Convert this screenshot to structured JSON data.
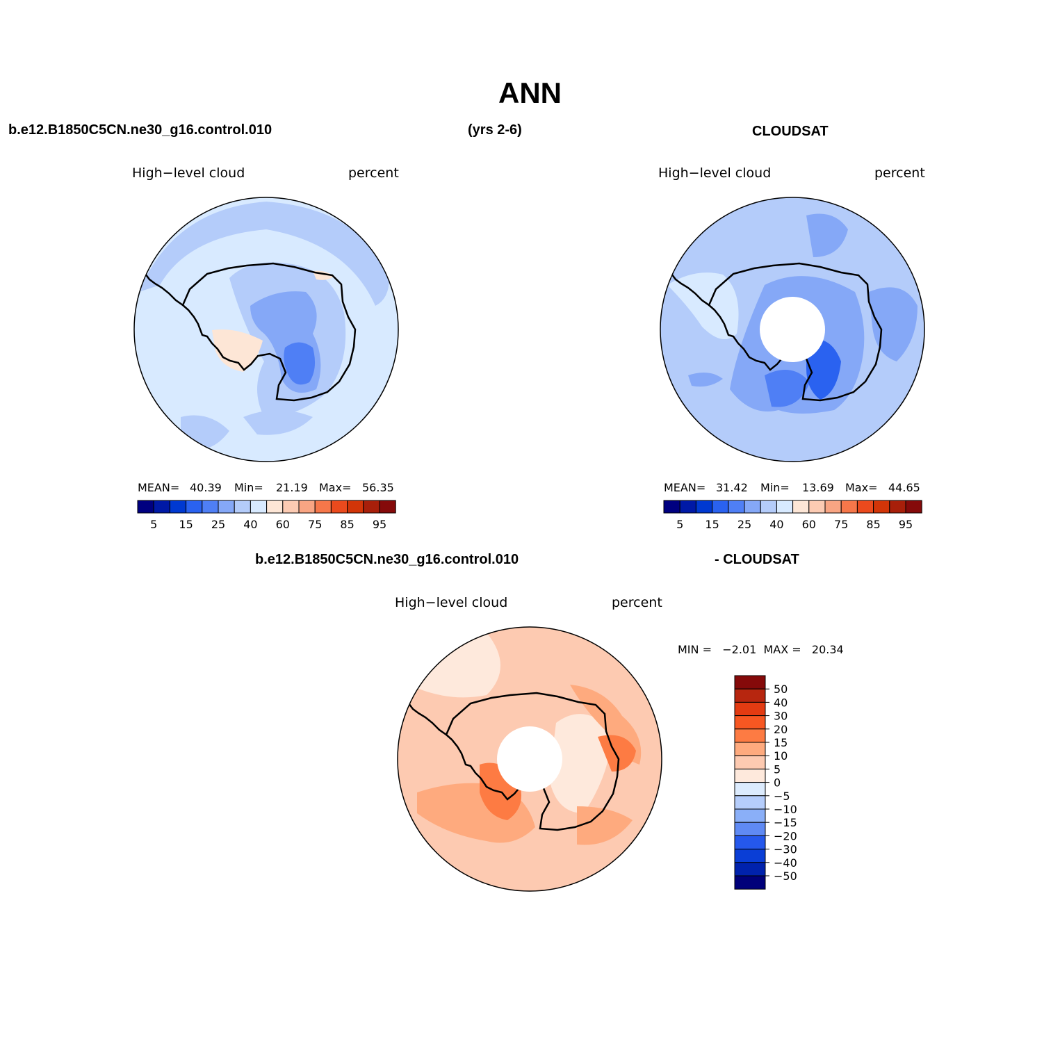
{
  "title": "ANN",
  "header": {
    "case_name": "b.e12.B1850C5CN.ne30_g16.control.010",
    "years": "(yrs 2-6)",
    "obs_name": "CLOUDSAT"
  },
  "panels": [
    {
      "id": "model",
      "variable_label": "High−level cloud",
      "units_label": "percent",
      "stats": {
        "mean_label": "MEAN=",
        "mean": "40.39",
        "min_label": "Min=",
        "min": "21.19",
        "max_label": "Max=",
        "max": "56.35"
      },
      "has_polar_hole": false
    },
    {
      "id": "obs",
      "variable_label": "High−level cloud",
      "units_label": "percent",
      "stats": {
        "mean_label": "MEAN=",
        "mean": "31.42",
        "min_label": "Min=",
        "min": "13.69",
        "max_label": "Max=",
        "max": "44.65"
      },
      "has_polar_hole": true
    }
  ],
  "difference": {
    "title_left": "b.e12.B1850C5CN.ne30_g16.control.010",
    "title_right": "- CLOUDSAT",
    "variable_label": "High−level cloud",
    "units_label": "percent",
    "min_max_text": "MIN =   −2.01  MAX =   20.34"
  },
  "colorbar_horizontal": {
    "colors": [
      "#000080",
      "#0019a6",
      "#0039d1",
      "#2a62f0",
      "#4f7ff5",
      "#85a8f7",
      "#b4ccfa",
      "#d8eaff",
      "#fde6d6",
      "#fccbb3",
      "#f9a583",
      "#f6774a",
      "#eb4a1d",
      "#d23508",
      "#a81f0a",
      "#850a0a"
    ],
    "tick_labels": [
      "5",
      "15",
      "25",
      "40",
      "60",
      "75",
      "85",
      "95"
    ]
  },
  "colorbar_vertical": {
    "colors_top_to_bottom": [
      "#850a0a",
      "#b7260f",
      "#e33b12",
      "#f75722",
      "#fd7b43",
      "#feaa7e",
      "#fdcab1",
      "#fee9dc",
      "#dcebfd",
      "#b5cdfb",
      "#8aaff8",
      "#5f8af4",
      "#2558ec",
      "#0a3ed6",
      "#0022ad",
      "#00007a"
    ],
    "tick_labels": [
      "50",
      "40",
      "30",
      "20",
      "15",
      "10",
      "5",
      "0",
      "−5",
      "−10",
      "−15",
      "−20",
      "−30",
      "−40",
      "−50"
    ]
  },
  "map_colors": {
    "outline": "#000000",
    "coast": "#000000",
    "model_background": "#d8eaff",
    "obs_background": "#b4ccfa",
    "diff_background": "#fdcab1"
  }
}
